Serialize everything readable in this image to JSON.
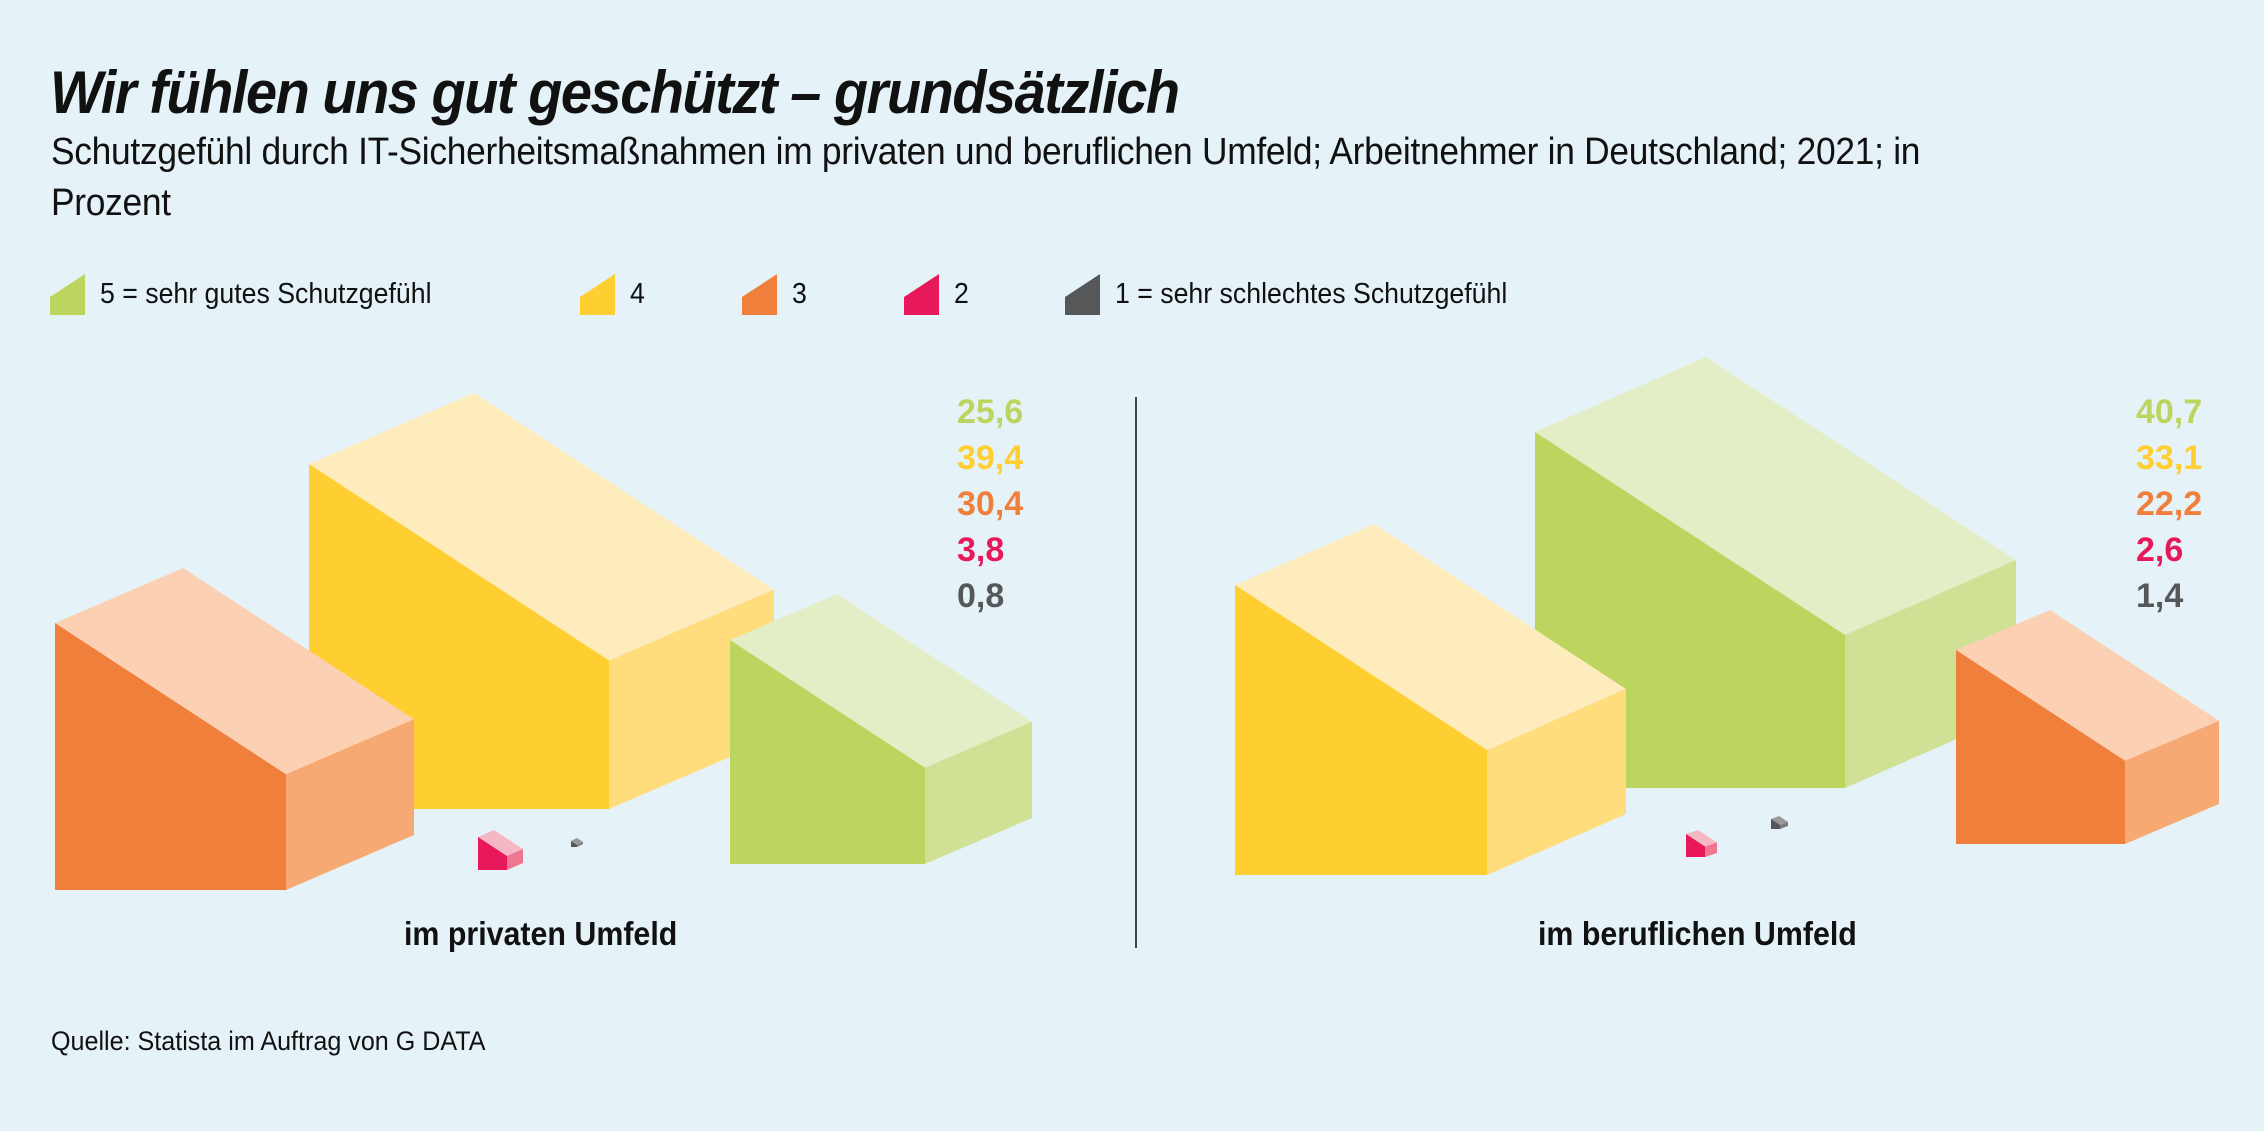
{
  "title": "Wir fühlen uns gut geschützt – grundsätzlich",
  "subtitle": "Schutzgefühl durch IT-Sicherheitsmaßnahmen im privaten und beruflichen Umfeld; Arbeitnehmer in Deutschland; 2021; in Prozent",
  "source": "Quelle: Statista im Auftrag von G DATA",
  "colors": {
    "background": "#E5F3F8",
    "5": {
      "front": "#BCD55E",
      "top": "#E3EEC6",
      "side": "#D0E195"
    },
    "4": {
      "front": "#FFCE31",
      "top": "#FFECBD",
      "side": "#FFDC7C"
    },
    "3": {
      "front": "#F07F3C",
      "top": "#FCD0B2",
      "side": "#F6A973"
    },
    "2": {
      "front": "#E8195A",
      "top": "#F6B7C4",
      "side": "#EF7690"
    },
    "1": {
      "front": "#555759",
      "top": "#9A9A9A",
      "side": "#7A7B7C"
    }
  },
  "legend": [
    {
      "key": "5",
      "label": "5 = sehr gutes Schutzgefühl"
    },
    {
      "key": "4",
      "label": "4"
    },
    {
      "key": "3",
      "label": "3"
    },
    {
      "key": "2",
      "label": "2"
    },
    {
      "key": "1",
      "label": "1 = sehr schlechtes Schutzgefühl"
    }
  ],
  "chart_data": {
    "type": "bar",
    "title": "Wir fühlen uns gut geschützt – grundsätzlich",
    "subtitle": "Schutzgefühl durch IT-Sicherheitsmaßnahmen im privaten und beruflichen Umfeld; Arbeitnehmer in Deutschland; 2021; in Prozent",
    "unit": "Prozent",
    "legend_position": "top",
    "categories": [
      "5 = sehr gutes Schutzgefühl",
      "4",
      "3",
      "2",
      "1 = sehr schlechtes Schutzgefühl"
    ],
    "series": [
      {
        "name": "im privaten Umfeld",
        "values": [
          25.6,
          39.4,
          30.4,
          3.8,
          0.8
        ],
        "labels": [
          "25,6",
          "39,4",
          "30,4",
          "3,8",
          "0,8"
        ]
      },
      {
        "name": "im beruflichen Umfeld",
        "values": [
          40.7,
          33.1,
          22.2,
          2.6,
          1.4
        ],
        "labels": [
          "40,7",
          "33,1",
          "22,2",
          "2,6",
          "1,4"
        ]
      }
    ]
  }
}
